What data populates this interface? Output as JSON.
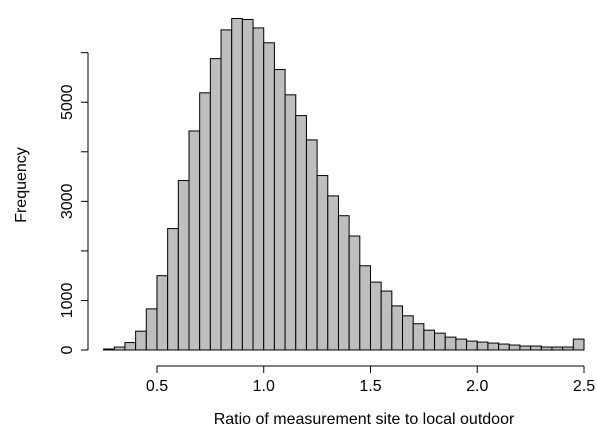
{
  "chart_data": {
    "type": "histogram",
    "x_label": "Ratio of measurement site to local outdoor",
    "y_label": "Frequency",
    "bins": [
      0.25,
      0.3,
      0.35,
      0.4,
      0.45,
      0.5,
      0.55,
      0.6,
      0.65,
      0.7,
      0.75,
      0.8,
      0.85,
      0.9,
      0.95,
      1.0,
      1.05,
      1.1,
      1.15,
      1.2,
      1.25,
      1.3,
      1.35,
      1.4,
      1.45,
      1.5,
      1.55,
      1.6,
      1.65,
      1.7,
      1.75,
      1.8,
      1.85,
      1.9,
      1.95,
      2.0,
      2.05,
      2.1,
      2.15,
      2.2,
      2.25,
      2.3,
      2.35,
      2.4,
      2.45,
      2.5
    ],
    "values": [
      20,
      60,
      150,
      380,
      830,
      1500,
      2450,
      3420,
      4420,
      5190,
      5880,
      6460,
      6690,
      6670,
      6500,
      6200,
      5660,
      5150,
      4730,
      4240,
      3520,
      3110,
      2710,
      2300,
      1700,
      1370,
      1190,
      890,
      690,
      530,
      400,
      340,
      260,
      220,
      180,
      160,
      140,
      120,
      100,
      80,
      80,
      60,
      60,
      60,
      220
    ],
    "color": "#bebebe",
    "xlim": [
      0.25,
      2.5
    ],
    "xticks": [
      0.5,
      {
        "value": 1.0,
        "label": "1.0"
      },
      1.5,
      {
        "value": 2.0,
        "label": "2.0"
      },
      2.5
    ],
    "ylim": [
      0,
      6700
    ],
    "yticks": [
      0,
      1000,
      3000,
      5000
    ],
    "yminor_ticks": [
      2000,
      4000,
      6000
    ]
  }
}
